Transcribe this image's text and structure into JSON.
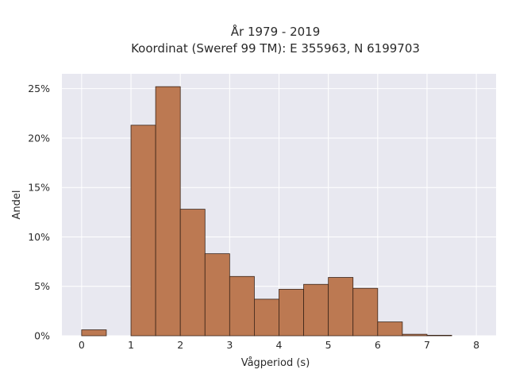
{
  "chart_data": {
    "type": "bar",
    "title": "År 1979 - 2019",
    "subtitle": "Koordinat (Sweref 99 TM): E 355963, N 6199703",
    "xlabel": "Vågperiod (s)",
    "ylabel": "Andel",
    "bin_width": 0.5,
    "bins": [
      {
        "start": 0.0,
        "value": 0.6
      },
      {
        "start": 1.0,
        "value": 21.3
      },
      {
        "start": 1.5,
        "value": 25.2
      },
      {
        "start": 2.0,
        "value": 12.8
      },
      {
        "start": 2.5,
        "value": 8.3
      },
      {
        "start": 3.0,
        "value": 6.0
      },
      {
        "start": 3.5,
        "value": 3.7
      },
      {
        "start": 4.0,
        "value": 4.7
      },
      {
        "start": 4.5,
        "value": 5.2
      },
      {
        "start": 5.0,
        "value": 5.9
      },
      {
        "start": 5.5,
        "value": 4.8
      },
      {
        "start": 6.0,
        "value": 1.4
      },
      {
        "start": 6.5,
        "value": 0.15
      },
      {
        "start": 7.0,
        "value": 0.05
      }
    ],
    "xlim": [
      -0.4,
      8.4
    ],
    "ylim": [
      0,
      26.5
    ],
    "x_ticks": [
      "0",
      "1",
      "2",
      "3",
      "4",
      "5",
      "6",
      "7",
      "8"
    ],
    "y_ticks": [
      "0%",
      "5%",
      "10%",
      "15%",
      "20%",
      "25%"
    ],
    "grid": true,
    "colors": {
      "bar_fill": "#bc7952",
      "bar_edge": "#3a2418",
      "plot_background": "#e8e8f0",
      "grid": "#ffffff"
    }
  }
}
